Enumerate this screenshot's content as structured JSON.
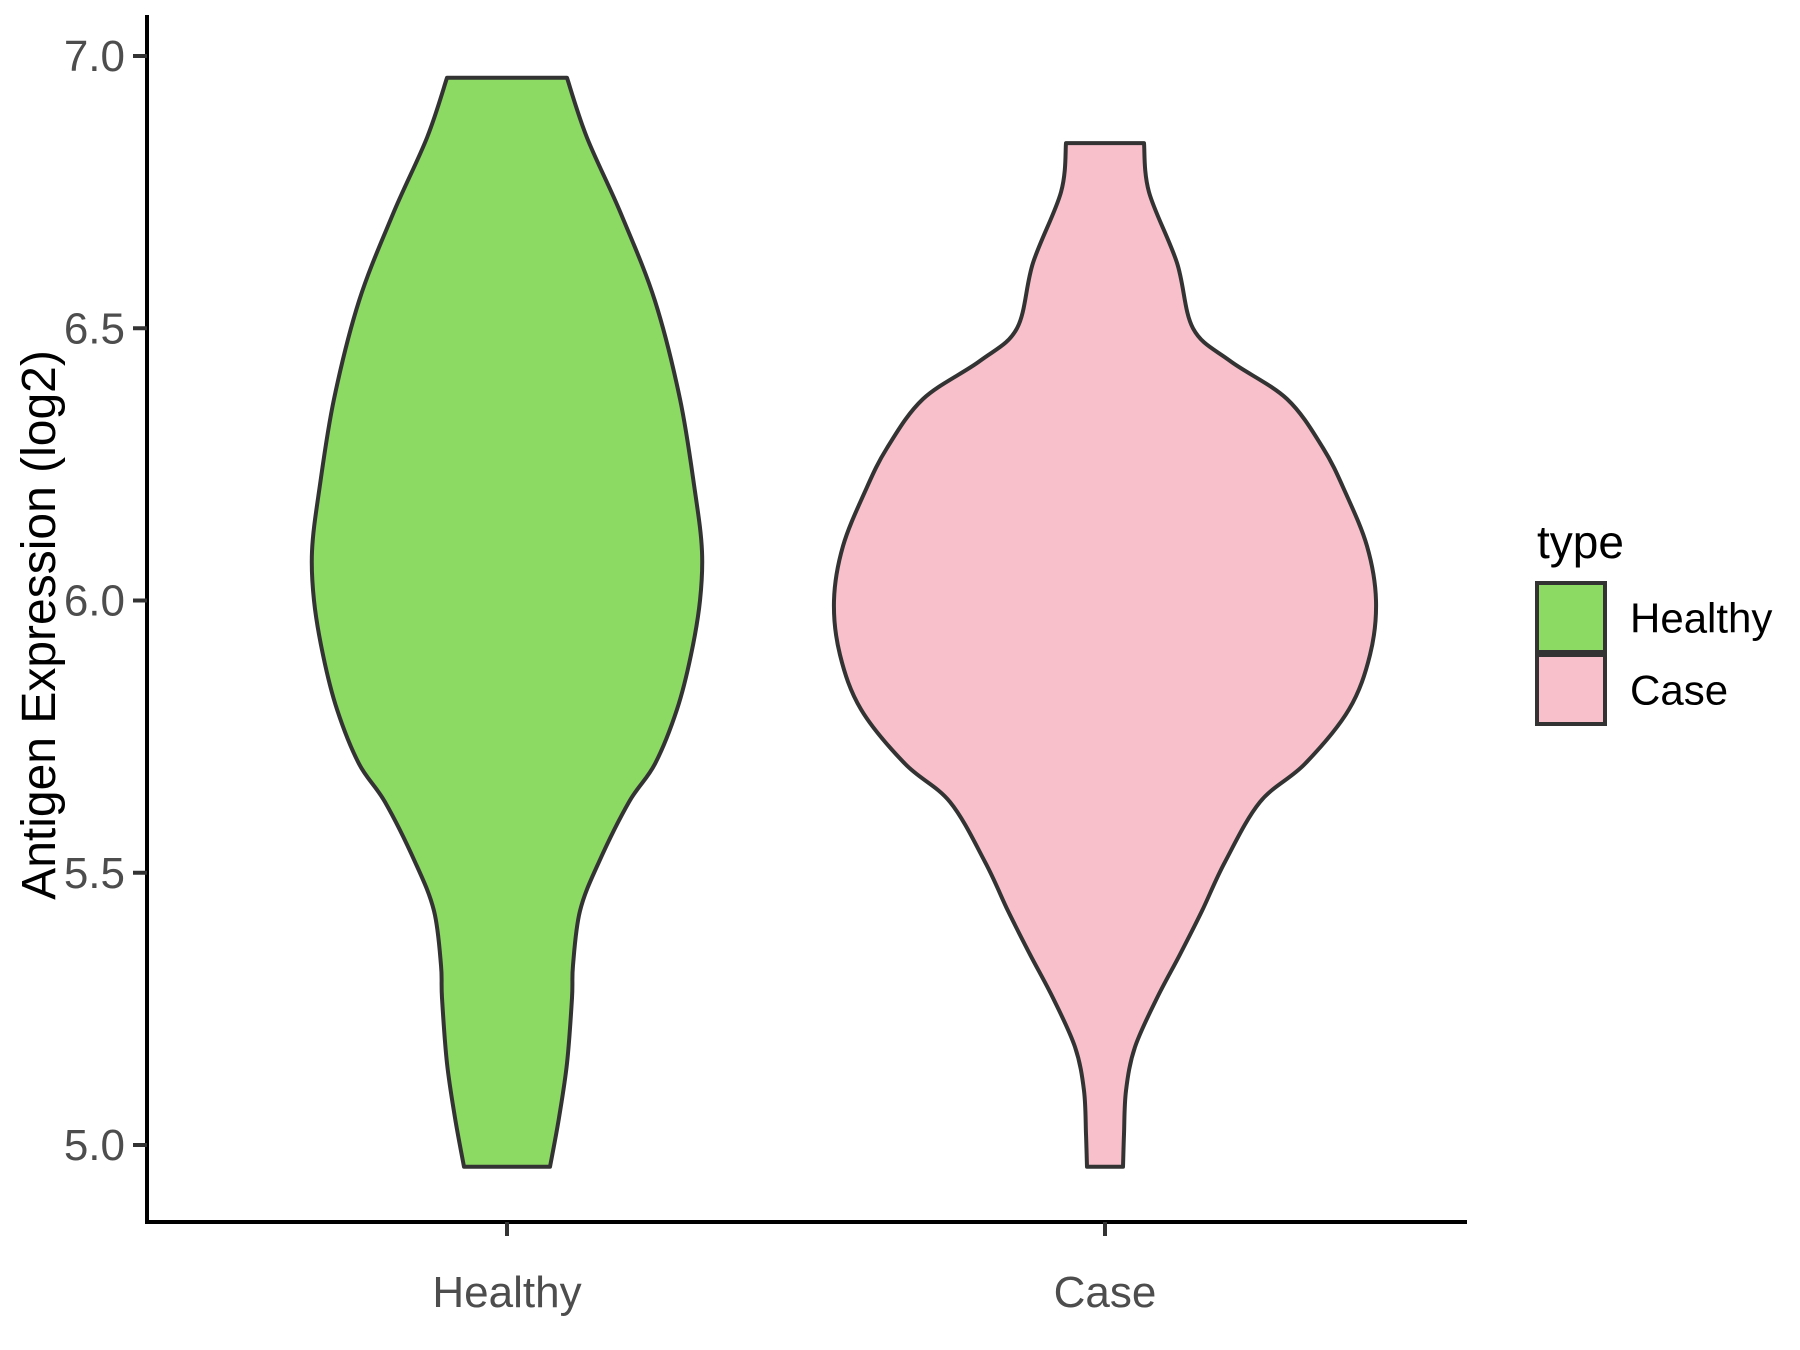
{
  "figure": {
    "background": "#FFFFFF"
  },
  "chart_data": {
    "type": "violin",
    "title": "",
    "xlabel": "",
    "ylabel": "Antigen Expression (log2)",
    "categories": [
      "Healthy",
      "Case"
    ],
    "y_axis": {
      "ticks": [
        {
          "value": 7.0,
          "label": "7.0"
        },
        {
          "value": 6.5,
          "label": "6.5"
        },
        {
          "value": 6.0,
          "label": "6.0"
        },
        {
          "value": 5.5,
          "label": "5.5"
        },
        {
          "value": 5.0,
          "label": "5.0"
        }
      ],
      "range": [
        4.85,
        7.05
      ],
      "grid": false
    },
    "legend": {
      "title": "type",
      "position": "right",
      "entries": [
        {
          "label": "Healthy",
          "color": "#8CD964"
        },
        {
          "label": "Case",
          "color": "#F8C0CB"
        }
      ]
    },
    "series": [
      {
        "name": "Healthy",
        "fill": "#8CD964",
        "min": 4.96,
        "max": 6.96,
        "peak_at": 6.09,
        "profile": [
          [
            6.96,
            60
          ],
          [
            6.85,
            80
          ],
          [
            6.71,
            114
          ],
          [
            6.55,
            148
          ],
          [
            6.37,
            173
          ],
          [
            6.2,
            188
          ],
          [
            6.09,
            195
          ],
          [
            6.0,
            193
          ],
          [
            5.9,
            184
          ],
          [
            5.8,
            170
          ],
          [
            5.7,
            148
          ],
          [
            5.63,
            122
          ],
          [
            5.52,
            92
          ],
          [
            5.43,
            73
          ],
          [
            5.33,
            66
          ],
          [
            5.27,
            65
          ],
          [
            5.15,
            60
          ],
          [
            5.05,
            52
          ],
          [
            4.96,
            43
          ]
        ]
      },
      {
        "name": "Case",
        "fill": "#F8C0CB",
        "min": 4.96,
        "max": 6.84,
        "peak_at": 6.0,
        "profile": [
          [
            6.84,
            39
          ],
          [
            6.75,
            44
          ],
          [
            6.62,
            72
          ],
          [
            6.5,
            88
          ],
          [
            6.44,
            125
          ],
          [
            6.37,
            182
          ],
          [
            6.28,
            218
          ],
          [
            6.2,
            240
          ],
          [
            6.1,
            262
          ],
          [
            6.0,
            271
          ],
          [
            5.9,
            265
          ],
          [
            5.8,
            244
          ],
          [
            5.7,
            200
          ],
          [
            5.63,
            155
          ],
          [
            5.52,
            120
          ],
          [
            5.43,
            97
          ],
          [
            5.35,
            75
          ],
          [
            5.27,
            52
          ],
          [
            5.18,
            30
          ],
          [
            5.1,
            21
          ],
          [
            5.02,
            19
          ],
          [
            4.96,
            18
          ]
        ]
      }
    ],
    "style": {
      "outline_color": "#333333",
      "axis_line_color": "#000000",
      "tick_color": "#333333",
      "tick_text_color": "#4D4D4D",
      "background": "#FFFFFF"
    }
  }
}
